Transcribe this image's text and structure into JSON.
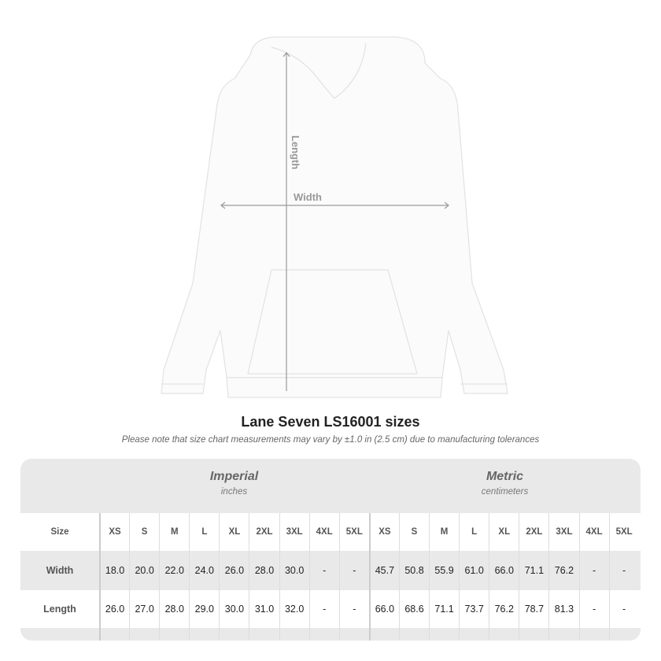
{
  "diagram": {
    "length_label": "Length",
    "width_label": "Width"
  },
  "title": "Lane Seven LS16001 sizes",
  "subtitle": "Please note that size chart measurements may vary by ±1.0 in (2.5 cm) due to manufacturing tolerances",
  "table": {
    "imperial": {
      "title": "Imperial",
      "unit": "inches"
    },
    "metric": {
      "title": "Metric",
      "unit": "centimeters"
    },
    "sizes_label": "Size",
    "sizes": [
      "XS",
      "S",
      "M",
      "L",
      "XL",
      "2XL",
      "3XL",
      "4XL",
      "5XL"
    ],
    "rows": [
      {
        "label": "Width",
        "imperial": [
          "18.0",
          "20.0",
          "22.0",
          "24.0",
          "26.0",
          "28.0",
          "30.0",
          "-",
          "-"
        ],
        "metric": [
          "45.7",
          "50.8",
          "55.9",
          "61.0",
          "66.0",
          "71.1",
          "76.2",
          "-",
          "-"
        ]
      },
      {
        "label": "Length",
        "imperial": [
          "26.0",
          "27.0",
          "28.0",
          "29.0",
          "30.0",
          "31.0",
          "32.0",
          "-",
          "-"
        ],
        "metric": [
          "66.0",
          "68.6",
          "71.1",
          "73.7",
          "76.2",
          "78.7",
          "81.3",
          "-",
          "-"
        ]
      }
    ]
  }
}
